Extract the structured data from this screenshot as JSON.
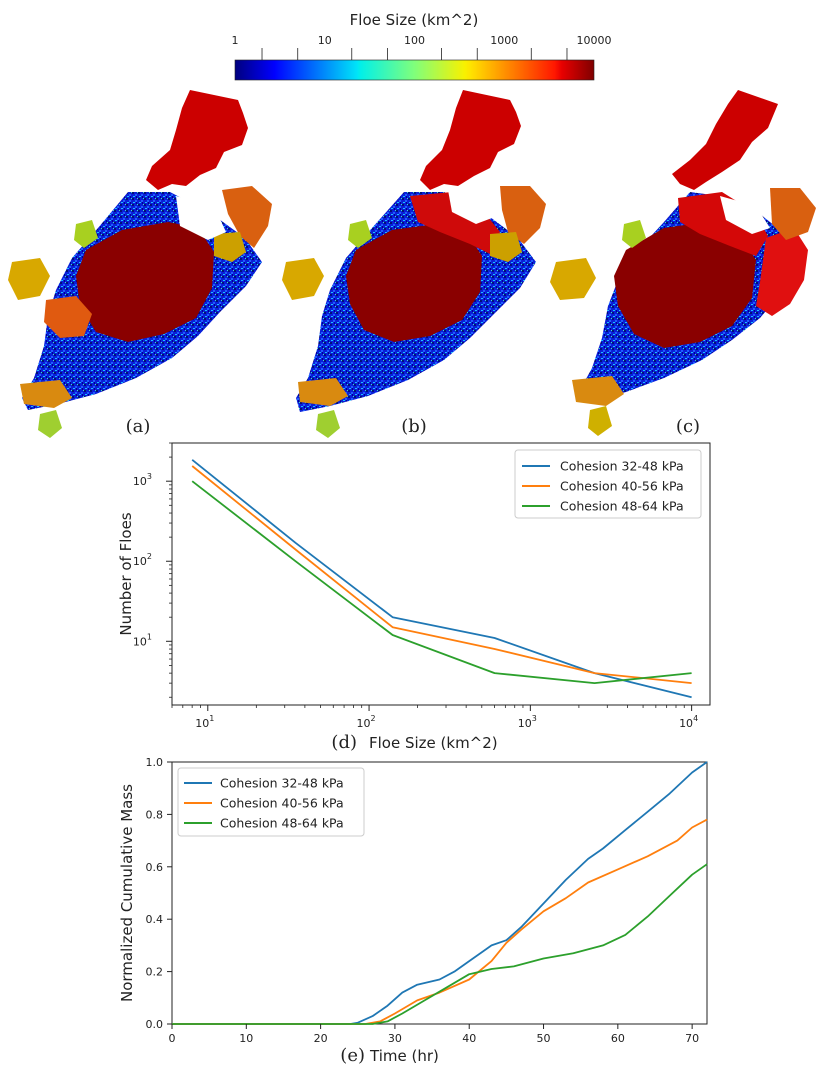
{
  "colorbar": {
    "title": "Floe Size (km^2)",
    "tick_labels": [
      "1",
      "10",
      "100",
      "1000",
      "10000"
    ],
    "tick_values": [
      1,
      10,
      100,
      1000,
      10000
    ],
    "colormap": "jet",
    "scale": "log"
  },
  "maps": [
    {
      "label": "(a)"
    },
    {
      "label": "(b)"
    },
    {
      "label": "(c)"
    }
  ],
  "chart_data": [
    {
      "panel": "(d)",
      "type": "line",
      "xlabel": "Floe Size (km^2)",
      "ylabel": "Number of Floes",
      "xscale": "log",
      "yscale": "log",
      "xlim": [
        6,
        13000
      ],
      "ylim": [
        1.6,
        3000
      ],
      "x_tick_labels": [
        "10",
        "10",
        "10",
        "10"
      ],
      "x_tick_exps": [
        "1",
        "2",
        "3",
        "4"
      ],
      "x_tick_values": [
        10,
        100,
        1000,
        10000
      ],
      "y_tick_labels": [
        "10",
        "10",
        "10"
      ],
      "y_tick_exps": [
        "1",
        "2",
        "3"
      ],
      "y_tick_values": [
        10,
        100,
        1000
      ],
      "legend_position": "top-right",
      "grid": false,
      "series": [
        {
          "name": "Cohesion 32-48 kPa",
          "color": "#1f77b4",
          "x": [
            8,
            35,
            140,
            600,
            2500,
            10000
          ],
          "y": [
            1850,
            170,
            20,
            11,
            4,
            2
          ]
        },
        {
          "name": "Cohesion 40-56 kPa",
          "color": "#ff7f0e",
          "x": [
            8,
            35,
            140,
            600,
            2500,
            10000
          ],
          "y": [
            1550,
            140,
            15,
            8,
            4,
            3
          ]
        },
        {
          "name": "Cohesion 48-64 kPa",
          "color": "#2ca02c",
          "x": [
            8,
            35,
            140,
            600,
            2500,
            10000
          ],
          "y": [
            1000,
            100,
            12,
            4,
            3,
            4
          ]
        }
      ]
    },
    {
      "panel": "(e)",
      "type": "line",
      "xlabel": "Time (hr)",
      "ylabel": "Normalized Cumulative Mass",
      "xlim": [
        0,
        72
      ],
      "ylim": [
        0,
        1
      ],
      "x_tick_labels": [
        "0",
        "10",
        "20",
        "30",
        "40",
        "50",
        "60",
        "70"
      ],
      "x_tick_values": [
        0,
        10,
        20,
        30,
        40,
        50,
        60,
        70
      ],
      "y_tick_labels": [
        "0.0",
        "0.2",
        "0.4",
        "0.6",
        "0.8",
        "1.0"
      ],
      "y_tick_values": [
        0,
        0.2,
        0.4,
        0.6,
        0.8,
        1.0
      ],
      "legend_position": "top-left",
      "grid": false,
      "series": [
        {
          "name": "Cohesion 32-48 kPa",
          "color": "#1f77b4",
          "x": [
            0,
            24,
            25,
            27,
            29,
            31,
            33,
            36,
            38,
            40,
            42,
            43,
            45,
            47,
            50,
            53,
            56,
            58,
            61,
            64,
            67,
            70,
            72
          ],
          "y": [
            0,
            0,
            0.005,
            0.03,
            0.07,
            0.12,
            0.15,
            0.17,
            0.2,
            0.24,
            0.28,
            0.3,
            0.32,
            0.37,
            0.46,
            0.55,
            0.63,
            0.67,
            0.74,
            0.81,
            0.88,
            0.96,
            1.0
          ]
        },
        {
          "name": "Cohesion 40-56 kPa",
          "color": "#ff7f0e",
          "x": [
            0,
            26,
            28,
            30,
            33,
            36,
            40,
            43,
            45,
            47,
            50,
            53,
            56,
            60,
            64,
            68,
            70,
            72
          ],
          "y": [
            0,
            0,
            0.01,
            0.04,
            0.09,
            0.12,
            0.17,
            0.24,
            0.31,
            0.36,
            0.43,
            0.48,
            0.54,
            0.59,
            0.64,
            0.7,
            0.75,
            0.78
          ]
        },
        {
          "name": "Cohesion 48-64 kPa",
          "color": "#2ca02c",
          "x": [
            0,
            27,
            29,
            31,
            34,
            37,
            40,
            43,
            46,
            50,
            54,
            58,
            61,
            64,
            67,
            70,
            72
          ],
          "y": [
            0,
            0,
            0.01,
            0.04,
            0.09,
            0.14,
            0.19,
            0.21,
            0.22,
            0.25,
            0.27,
            0.3,
            0.34,
            0.41,
            0.49,
            0.57,
            0.61
          ]
        }
      ]
    }
  ]
}
